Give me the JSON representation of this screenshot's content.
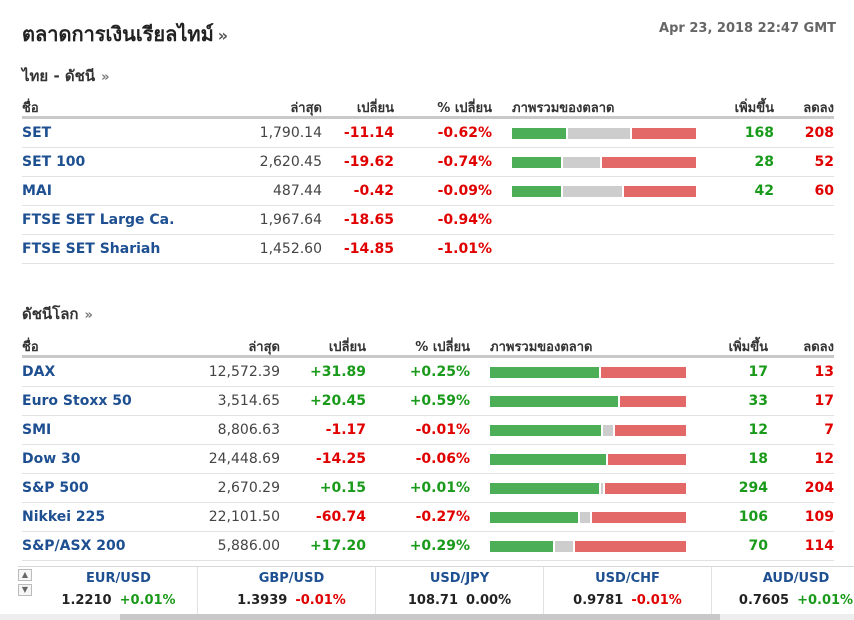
{
  "header": {
    "title": "ตลาดการเงินเรียลไทม์",
    "more": "»",
    "datetime": "Apr 23, 2018 22:47 GMT"
  },
  "thai": {
    "title": "ไทย - ดัชนี",
    "more": "»",
    "columns": {
      "name": "ชื่อ",
      "last": "ล่าสุด",
      "chg": "เปลี่ยน",
      "pct": "% เปลี่ยน",
      "overview": "ภาพรวมของตลาด",
      "adv": "เพิ่มขึ้น",
      "dec": "ลดลง"
    },
    "rows": [
      {
        "name": "SET",
        "last": "1,790.14",
        "chg": "-11.14",
        "pct": "-0.62%",
        "adv": "168",
        "dec": "208",
        "breadth": [
          0.31,
          0.36,
          0.37
        ]
      },
      {
        "name": "SET 100",
        "last": "2,620.45",
        "chg": "-19.62",
        "pct": "-0.74%",
        "adv": "28",
        "dec": "52",
        "breadth": [
          0.27,
          0.21,
          0.52
        ]
      },
      {
        "name": "MAI",
        "last": "487.44",
        "chg": "-0.42",
        "pct": "-0.09%",
        "adv": "42",
        "dec": "60",
        "breadth": [
          0.27,
          0.33,
          0.4
        ]
      },
      {
        "name": "FTSE SET Large Ca.",
        "last": "1,967.64",
        "chg": "-18.65",
        "pct": "-0.94%",
        "adv": "",
        "dec": "",
        "breadth": null
      },
      {
        "name": "FTSE SET Shariah",
        "last": "1,452.60",
        "chg": "-14.85",
        "pct": "-1.01%",
        "adv": "",
        "dec": "",
        "breadth": null
      }
    ]
  },
  "world": {
    "title": "ดัชนีโลก",
    "more": "»",
    "columns": {
      "name": "ชื่อ",
      "last": "ล่าสุด",
      "chg": "เปลี่ยน",
      "pct": "% เปลี่ยน",
      "overview": "ภาพรวมของตลาด",
      "adv": "เพิ่มขึ้น",
      "dec": "ลดลง"
    },
    "rows": [
      {
        "name": "DAX",
        "last": "12,572.39",
        "chg": "+31.89",
        "pct": "+0.25%",
        "adv": "17",
        "dec": "13",
        "breadth": [
          0.56,
          0.0,
          0.44
        ]
      },
      {
        "name": "Euro Stoxx 50",
        "last": "3,514.65",
        "chg": "+20.45",
        "pct": "+0.59%",
        "adv": "33",
        "dec": "17",
        "breadth": [
          0.66,
          0.0,
          0.34
        ]
      },
      {
        "name": "SMI",
        "last": "8,806.63",
        "chg": "-1.17",
        "pct": "-0.01%",
        "adv": "12",
        "dec": "7",
        "breadth": [
          0.58,
          0.05,
          0.37
        ]
      },
      {
        "name": "Dow 30",
        "last": "24,448.69",
        "chg": "-14.25",
        "pct": "-0.06%",
        "adv": "18",
        "dec": "12",
        "breadth": [
          0.6,
          0.0,
          0.4
        ]
      },
      {
        "name": "S&P 500",
        "last": "2,670.29",
        "chg": "+0.15",
        "pct": "+0.01%",
        "adv": "294",
        "dec": "204",
        "breadth": [
          0.57,
          0.01,
          0.42
        ]
      },
      {
        "name": "Nikkei 225",
        "last": "22,101.50",
        "chg": "-60.74",
        "pct": "-0.27%",
        "adv": "106",
        "dec": "109",
        "breadth": [
          0.46,
          0.05,
          0.49
        ]
      },
      {
        "name": "S&P/ASX 200",
        "last": "5,886.00",
        "chg": "+17.20",
        "pct": "+0.29%",
        "adv": "70",
        "dec": "114",
        "breadth": [
          0.33,
          0.09,
          0.58
        ]
      }
    ]
  },
  "fx": [
    {
      "pair": "EUR/USD",
      "value": "1.2210",
      "chg": "+0.01%",
      "dir": "pos"
    },
    {
      "pair": "GBP/USD",
      "value": "1.3939",
      "chg": "-0.01%",
      "dir": "neg"
    },
    {
      "pair": "USD/JPY",
      "value": "108.71",
      "chg": "0.00%",
      "dir": "zero"
    },
    {
      "pair": "USD/CHF",
      "value": "0.9781",
      "chg": "-0.01%",
      "dir": "neg"
    },
    {
      "pair": "AUD/USD",
      "value": "0.7605",
      "chg": "+0.01%",
      "dir": "pos"
    }
  ],
  "icons": {
    "arrow_up": "▲",
    "arrow_down": "▼"
  },
  "colors": {
    "advance": "#4caf58",
    "unchanged": "#cdcdcd",
    "decline": "#e36969",
    "link": "#1d4f91"
  }
}
